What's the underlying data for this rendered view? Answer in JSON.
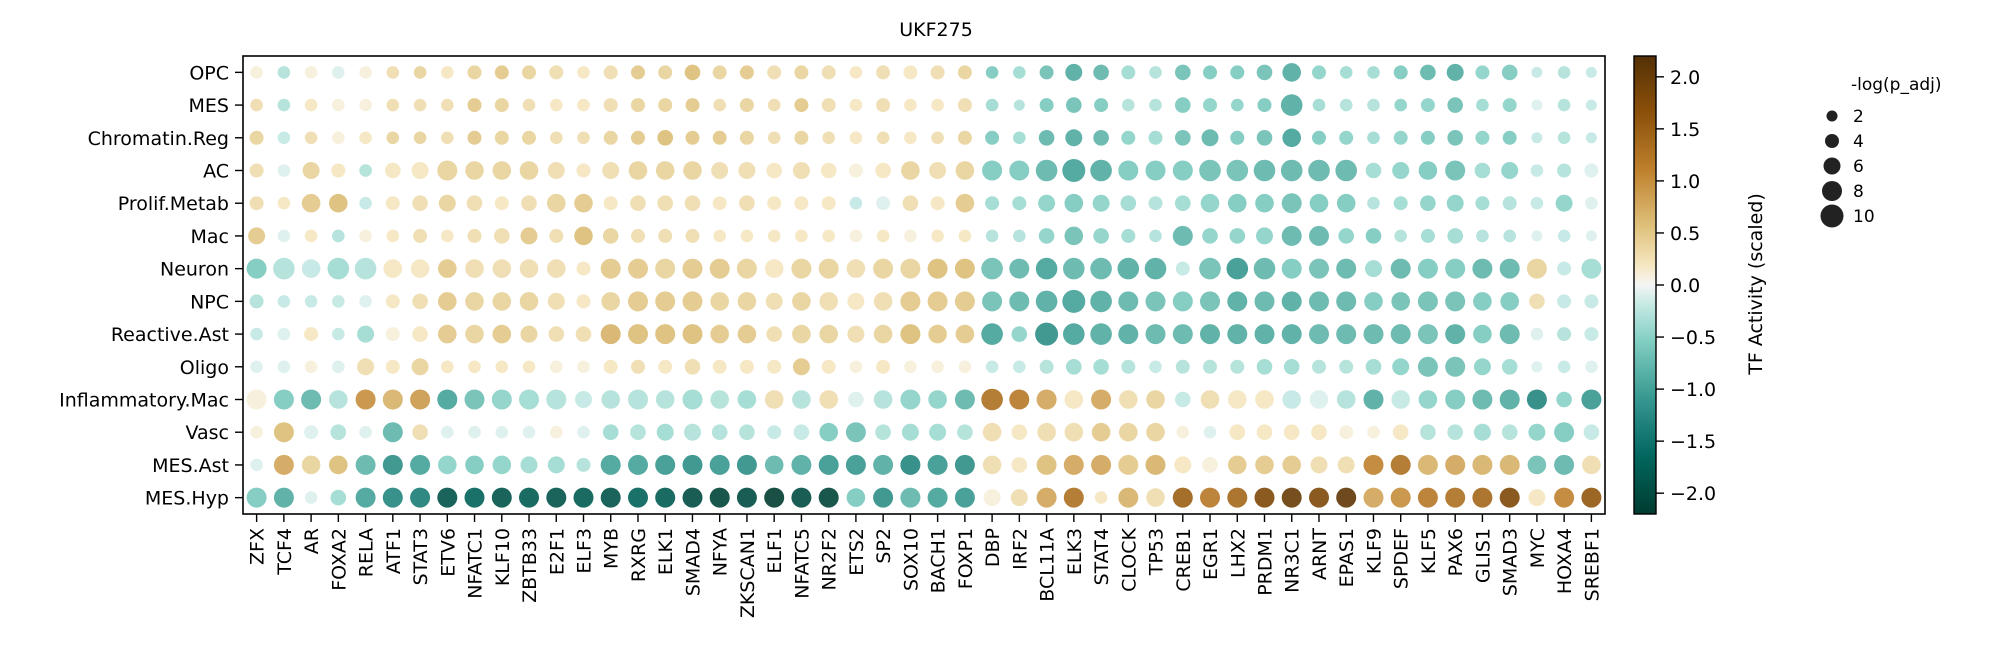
{
  "chart_data": {
    "type": "dotplot",
    "title": "UKF275",
    "rows": [
      "OPC",
      "MES",
      "Chromatin.Reg",
      "AC",
      "Prolif.Metab",
      "Mac",
      "Neuron",
      "NPC",
      "Reactive.Ast",
      "Oligo",
      "Inflammatory.Mac",
      "Vasc",
      "MES.Ast",
      "MES.Hyp"
    ],
    "columns": [
      "ZFX",
      "TCF4",
      "AR",
      "FOXA2",
      "RELA",
      "ATF1",
      "STAT3",
      "ETV6",
      "NFATC1",
      "KLF10",
      "ZBTB33",
      "E2F1",
      "ELF3",
      "MYB",
      "RXRG",
      "ELK1",
      "SMAD4",
      "NFYA",
      "ZKSCAN1",
      "ELF1",
      "NFATC5",
      "NR2F2",
      "ETS2",
      "SP2",
      "SOX10",
      "BACH1",
      "FOXP1",
      "DBP",
      "IRF2",
      "BCL11A",
      "ELK3",
      "STAT4",
      "CLOCK",
      "TP53",
      "CREB1",
      "EGR1",
      "LHX2",
      "PRDM1",
      "NR3C1",
      "ARNT",
      "EPAS1",
      "KLF9",
      "SPDEF",
      "KLF5",
      "PAX6",
      "GLIS1",
      "SMAD3",
      "MYC",
      "HOXA4",
      "SREBF1"
    ],
    "activity": [
      [
        0.1,
        -0.3,
        0.1,
        -0.1,
        0.1,
        0.3,
        0.4,
        0.2,
        0.4,
        0.5,
        0.4,
        0.3,
        0.2,
        0.3,
        0.5,
        0.4,
        0.6,
        0.4,
        0.5,
        0.3,
        0.4,
        0.3,
        0.2,
        0.3,
        0.2,
        0.3,
        0.4,
        -0.6,
        -0.4,
        -0.7,
        -0.9,
        -0.8,
        -0.4,
        -0.3,
        -0.7,
        -0.6,
        -0.6,
        -0.7,
        -0.9,
        -0.5,
        -0.4,
        -0.4,
        -0.6,
        -0.8,
        -0.9,
        -0.5,
        -0.6,
        -0.2,
        -0.3,
        -0.2
      ],
      [
        0.3,
        -0.3,
        0.2,
        0.1,
        0.1,
        0.3,
        0.3,
        0.3,
        0.5,
        0.4,
        0.3,
        0.2,
        0.2,
        0.3,
        0.4,
        0.4,
        0.5,
        0.3,
        0.4,
        0.3,
        0.5,
        0.3,
        0.2,
        0.3,
        0.2,
        0.2,
        0.3,
        -0.4,
        -0.3,
        -0.6,
        -0.7,
        -0.6,
        -0.3,
        -0.3,
        -0.6,
        -0.5,
        -0.5,
        -0.6,
        -0.9,
        -0.4,
        -0.3,
        -0.3,
        -0.5,
        -0.5,
        -0.7,
        -0.4,
        -0.5,
        -0.1,
        -0.3,
        -0.2
      ],
      [
        0.4,
        -0.2,
        0.3,
        0.1,
        0.2,
        0.4,
        0.4,
        0.3,
        0.5,
        0.4,
        0.4,
        0.3,
        0.3,
        0.4,
        0.5,
        0.6,
        0.5,
        0.5,
        0.4,
        0.3,
        0.4,
        0.3,
        0.2,
        0.3,
        0.2,
        0.3,
        0.4,
        -0.6,
        -0.4,
        -0.8,
        -0.9,
        -0.8,
        -0.5,
        -0.4,
        -0.7,
        -0.8,
        -0.6,
        -0.7,
        -1.0,
        -0.6,
        -0.5,
        -0.4,
        -0.5,
        -0.6,
        -0.7,
        -0.5,
        -0.6,
        -0.2,
        -0.3,
        -0.2
      ],
      [
        0.3,
        -0.1,
        0.4,
        0.2,
        -0.3,
        0.2,
        0.2,
        0.4,
        0.4,
        0.4,
        0.4,
        0.3,
        0.2,
        0.3,
        0.4,
        0.4,
        0.4,
        0.3,
        0.3,
        0.2,
        0.3,
        0.2,
        0.1,
        0.2,
        0.4,
        0.3,
        0.4,
        -0.6,
        -0.6,
        -0.8,
        -1.0,
        -0.9,
        -0.6,
        -0.6,
        -0.6,
        -0.7,
        -0.7,
        -0.8,
        -0.8,
        -0.8,
        -0.8,
        -0.4,
        -0.5,
        -0.6,
        -0.7,
        -0.4,
        -0.5,
        -0.2,
        -0.3,
        -0.1
      ],
      [
        0.3,
        0.2,
        0.5,
        0.6,
        -0.2,
        0.2,
        0.3,
        0.4,
        0.3,
        0.2,
        0.3,
        0.4,
        0.5,
        0.2,
        0.3,
        0.3,
        0.3,
        0.2,
        0.3,
        0.2,
        0.2,
        0.2,
        -0.2,
        -0.1,
        0.3,
        0.2,
        0.5,
        -0.4,
        -0.4,
        -0.5,
        -0.6,
        -0.5,
        -0.4,
        -0.3,
        -0.4,
        -0.5,
        -0.6,
        -0.6,
        -0.7,
        -0.6,
        -0.6,
        -0.3,
        -0.4,
        -0.5,
        -0.5,
        -0.4,
        -0.3,
        -0.2,
        -0.5,
        -0.1
      ],
      [
        0.5,
        -0.1,
        0.2,
        -0.3,
        0.1,
        0.2,
        0.3,
        0.2,
        0.3,
        0.3,
        0.5,
        0.3,
        0.6,
        0.4,
        0.3,
        0.3,
        0.3,
        0.2,
        0.2,
        0.2,
        0.2,
        0.2,
        0.1,
        0.2,
        0.1,
        0.2,
        0.2,
        -0.3,
        -0.3,
        -0.5,
        -0.7,
        -0.5,
        -0.4,
        -0.3,
        -0.8,
        -0.5,
        -0.5,
        -0.5,
        -0.8,
        -0.8,
        -0.5,
        -0.6,
        -0.3,
        -0.4,
        -0.4,
        -0.3,
        -0.3,
        -0.1,
        -0.2,
        -0.1
      ],
      [
        -0.6,
        -0.3,
        -0.2,
        -0.4,
        -0.3,
        0.2,
        0.2,
        0.5,
        0.3,
        0.3,
        0.3,
        0.3,
        0.2,
        0.5,
        0.5,
        0.4,
        0.5,
        0.5,
        0.4,
        0.2,
        0.4,
        0.4,
        0.3,
        0.4,
        0.4,
        0.6,
        0.6,
        -0.7,
        -0.8,
        -1.0,
        -0.8,
        -0.8,
        -0.9,
        -0.9,
        -0.2,
        -0.7,
        -1.1,
        -0.8,
        -0.6,
        -0.7,
        -0.8,
        -0.4,
        -0.8,
        -0.6,
        -0.6,
        -0.8,
        -0.8,
        0.4,
        -0.2,
        -0.4
      ],
      [
        -0.3,
        -0.2,
        -0.2,
        -0.2,
        -0.1,
        0.2,
        0.3,
        0.5,
        0.4,
        0.4,
        0.4,
        0.3,
        0.2,
        0.4,
        0.5,
        0.5,
        0.5,
        0.4,
        0.4,
        0.3,
        0.4,
        0.3,
        0.2,
        0.3,
        0.5,
        0.5,
        0.5,
        -0.7,
        -0.8,
        -0.9,
        -1.0,
        -0.9,
        -0.8,
        -0.7,
        -0.6,
        -0.7,
        -0.9,
        -0.8,
        -0.9,
        -0.8,
        -0.8,
        -0.6,
        -0.7,
        -0.7,
        -0.7,
        -0.6,
        -0.6,
        0.3,
        -0.2,
        -0.2
      ],
      [
        -0.2,
        -0.1,
        0.2,
        -0.2,
        -0.4,
        0.1,
        0.2,
        0.5,
        0.4,
        0.5,
        0.4,
        0.3,
        0.3,
        0.7,
        0.6,
        0.6,
        0.6,
        0.5,
        0.5,
        0.3,
        0.4,
        0.4,
        0.3,
        0.4,
        0.6,
        0.5,
        0.5,
        -1.0,
        -0.5,
        -1.2,
        -1.0,
        -0.9,
        -0.9,
        -0.8,
        -0.8,
        -0.9,
        -0.9,
        -0.9,
        -0.9,
        -0.8,
        -0.8,
        -0.8,
        -0.8,
        -0.7,
        -0.9,
        -0.6,
        -0.8,
        -0.1,
        -0.3,
        -0.2
      ],
      [
        -0.1,
        -0.1,
        0.1,
        -0.1,
        0.3,
        0.2,
        0.4,
        0.2,
        0.2,
        0.2,
        0.2,
        0.1,
        0.1,
        0.2,
        0.3,
        0.2,
        0.3,
        0.2,
        0.2,
        0.2,
        0.5,
        0.2,
        0.1,
        0.2,
        0.1,
        0.1,
        0.1,
        -0.2,
        -0.2,
        -0.3,
        -0.4,
        -0.4,
        -0.3,
        -0.2,
        -0.3,
        -0.3,
        -0.3,
        -0.4,
        -0.4,
        -0.3,
        -0.3,
        -0.4,
        -0.5,
        -0.7,
        -0.7,
        -0.5,
        -0.4,
        -0.1,
        -0.2,
        -0.1
      ],
      [
        0.1,
        -0.6,
        -0.8,
        -0.3,
        1.0,
        0.7,
        0.9,
        -1.0,
        -0.7,
        -0.5,
        -0.4,
        -0.3,
        -0.2,
        -0.3,
        -0.3,
        -0.3,
        -0.4,
        -0.3,
        -0.4,
        0.3,
        -0.3,
        0.3,
        -0.1,
        -0.3,
        -0.5,
        -0.5,
        -0.8,
        1.3,
        1.2,
        0.8,
        0.2,
        0.8,
        0.3,
        0.4,
        -0.2,
        0.3,
        0.2,
        0.2,
        -0.2,
        -0.1,
        -0.3,
        -0.9,
        -0.2,
        -0.5,
        -0.6,
        -0.8,
        -0.9,
        -1.3,
        -0.5,
        -1.1
      ],
      [
        0.1,
        0.6,
        -0.1,
        -0.3,
        -0.1,
        -0.8,
        0.3,
        -0.1,
        -0.1,
        -0.1,
        -0.1,
        0.1,
        -0.1,
        -0.4,
        -0.3,
        -0.4,
        -0.3,
        -0.3,
        -0.3,
        -0.2,
        -0.2,
        -0.6,
        -0.7,
        -0.3,
        -0.4,
        -0.4,
        -0.3,
        0.3,
        0.2,
        0.3,
        0.3,
        0.5,
        0.4,
        0.4,
        0.1,
        -0.1,
        0.2,
        0.2,
        0.2,
        0.2,
        0.1,
        0.1,
        0.2,
        -0.3,
        -0.3,
        -0.4,
        -0.3,
        -0.5,
        -0.6,
        -0.2
      ],
      [
        -0.1,
        0.8,
        0.4,
        0.6,
        -0.8,
        -1.2,
        -1.0,
        -0.5,
        -0.6,
        -0.5,
        -0.4,
        -0.4,
        -0.3,
        -1.0,
        -1.0,
        -1.1,
        -1.2,
        -1.1,
        -1.2,
        -0.8,
        -0.9,
        -1.1,
        -1.1,
        -0.9,
        -1.3,
        -1.1,
        -1.2,
        0.3,
        0.2,
        0.6,
        0.8,
        0.8,
        0.5,
        0.7,
        0.2,
        0.1,
        0.5,
        0.5,
        0.5,
        0.3,
        0.3,
        1.1,
        1.3,
        0.7,
        0.8,
        0.7,
        0.7,
        -0.7,
        -0.8,
        0.3
      ],
      [
        -0.6,
        -0.9,
        -0.1,
        -0.4,
        -1.0,
        -1.3,
        -1.4,
        -1.9,
        -1.7,
        -1.9,
        -1.8,
        -1.9,
        -1.8,
        -1.9,
        -1.7,
        -1.8,
        -2.0,
        -2.1,
        -2.0,
        -2.2,
        -2.0,
        -2.1,
        -0.6,
        -1.2,
        -0.8,
        -1.0,
        -1.1,
        0.1,
        0.3,
        0.8,
        1.3,
        0.2,
        0.7,
        0.3,
        1.5,
        1.2,
        1.4,
        1.8,
        2.0,
        1.8,
        2.1,
        0.8,
        1.0,
        1.2,
        1.3,
        1.4,
        1.8,
        0.2,
        1.1,
        1.6
      ]
    ],
    "neglog_padj": [
      [
        3,
        3,
        3,
        3,
        3,
        3,
        3,
        3,
        4,
        4,
        4,
        4,
        3,
        4,
        4,
        4,
        5,
        4,
        4,
        4,
        4,
        4,
        3,
        4,
        4,
        4,
        4,
        3,
        3,
        4,
        6,
        5,
        4,
        3,
        5,
        4,
        4,
        5,
        7,
        4,
        3,
        3,
        4,
        5,
        6,
        4,
        5,
        2,
        3,
        2
      ],
      [
        3,
        3,
        3,
        3,
        3,
        3,
        3,
        3,
        4,
        4,
        3,
        3,
        3,
        4,
        4,
        4,
        4,
        3,
        4,
        3,
        4,
        4,
        3,
        4,
        3,
        3,
        4,
        3,
        2,
        4,
        5,
        4,
        3,
        3,
        5,
        4,
        3,
        4,
        9,
        3,
        3,
        3,
        3,
        4,
        5,
        3,
        4,
        2,
        3,
        2
      ],
      [
        4,
        3,
        3,
        3,
        3,
        3,
        3,
        3,
        4,
        4,
        4,
        3,
        3,
        4,
        4,
        5,
        4,
        4,
        4,
        3,
        4,
        3,
        3,
        3,
        3,
        3,
        4,
        4,
        3,
        5,
        6,
        5,
        4,
        4,
        5,
        6,
        4,
        5,
        7,
        4,
        4,
        3,
        4,
        4,
        5,
        4,
        4,
        2,
        3,
        2
      ],
      [
        4,
        3,
        6,
        4,
        3,
        5,
        6,
        8,
        7,
        7,
        7,
        6,
        4,
        6,
        7,
        7,
        7,
        6,
        6,
        5,
        6,
        5,
        4,
        5,
        7,
        6,
        7,
        8,
        8,
        9,
        10,
        9,
        8,
        8,
        8,
        9,
        9,
        9,
        9,
        9,
        9,
        5,
        6,
        7,
        8,
        5,
        6,
        3,
        4,
        4
      ],
      [
        4,
        3,
        7,
        7,
        3,
        4,
        5,
        6,
        5,
        4,
        5,
        7,
        7,
        4,
        5,
        5,
        5,
        4,
        5,
        4,
        4,
        4,
        3,
        4,
        5,
        4,
        7,
        4,
        4,
        6,
        7,
        6,
        5,
        4,
        5,
        7,
        7,
        7,
        8,
        7,
        7,
        3,
        4,
        5,
        6,
        4,
        4,
        3,
        6,
        3
      ],
      [
        6,
        3,
        3,
        3,
        3,
        3,
        4,
        3,
        4,
        5,
        6,
        4,
        7,
        5,
        4,
        4,
        4,
        3,
        3,
        3,
        3,
        3,
        3,
        3,
        3,
        3,
        3,
        3,
        3,
        5,
        7,
        5,
        4,
        3,
        8,
        5,
        5,
        6,
        8,
        8,
        5,
        5,
        3,
        4,
        5,
        3,
        3,
        2,
        3,
        2
      ],
      [
        8,
        9,
        7,
        9,
        9,
        7,
        7,
        7,
        7,
        7,
        7,
        7,
        4,
        8,
        8,
        8,
        8,
        8,
        8,
        7,
        8,
        8,
        7,
        8,
        8,
        8,
        8,
        9,
        8,
        9,
        9,
        9,
        9,
        9,
        4,
        9,
        9,
        9,
        8,
        8,
        8,
        6,
        8,
        8,
        8,
        8,
        8,
        8,
        4,
        8
      ],
      [
        4,
        3,
        3,
        3,
        3,
        4,
        5,
        7,
        7,
        7,
        7,
        6,
        4,
        7,
        8,
        8,
        8,
        7,
        7,
        6,
        7,
        7,
        6,
        7,
        8,
        8,
        8,
        8,
        8,
        9,
        10,
        9,
        8,
        8,
        8,
        8,
        8,
        8,
        8,
        8,
        8,
        7,
        7,
        8,
        8,
        7,
        7,
        5,
        4,
        4
      ],
      [
        3,
        3,
        4,
        3,
        6,
        4,
        5,
        7,
        7,
        7,
        6,
        5,
        5,
        8,
        8,
        8,
        8,
        7,
        7,
        5,
        7,
        7,
        6,
        7,
        8,
        7,
        7,
        9,
        5,
        10,
        9,
        9,
        8,
        8,
        8,
        8,
        8,
        8,
        8,
        8,
        8,
        8,
        8,
        8,
        8,
        7,
        8,
        3,
        4,
        4
      ],
      [
        3,
        3,
        3,
        3,
        6,
        4,
        6,
        3,
        3,
        3,
        3,
        3,
        3,
        4,
        4,
        4,
        5,
        4,
        4,
        4,
        6,
        4,
        3,
        4,
        3,
        3,
        3,
        3,
        3,
        4,
        5,
        5,
        4,
        3,
        4,
        4,
        4,
        5,
        5,
        4,
        4,
        5,
        6,
        8,
        8,
        6,
        5,
        2,
        3,
        3
      ],
      [
        8,
        8,
        8,
        7,
        8,
        8,
        8,
        8,
        8,
        8,
        8,
        8,
        6,
        7,
        8,
        7,
        8,
        7,
        7,
        7,
        7,
        7,
        5,
        7,
        8,
        7,
        8,
        9,
        8,
        8,
        7,
        8,
        7,
        7,
        5,
        7,
        7,
        7,
        7,
        7,
        7,
        8,
        7,
        7,
        8,
        8,
        8,
        8,
        5,
        8
      ],
      [
        3,
        8,
        4,
        5,
        3,
        8,
        5,
        3,
        3,
        3,
        3,
        3,
        3,
        5,
        5,
        6,
        6,
        5,
        5,
        4,
        5,
        7,
        8,
        5,
        6,
        6,
        5,
        7,
        5,
        7,
        7,
        7,
        7,
        7,
        3,
        3,
        5,
        5,
        5,
        5,
        4,
        3,
        5,
        5,
        5,
        6,
        5,
        6,
        8,
        5
      ],
      [
        3,
        8,
        7,
        7,
        8,
        8,
        8,
        7,
        7,
        7,
        6,
        6,
        4,
        8,
        8,
        8,
        8,
        8,
        8,
        7,
        8,
        8,
        8,
        8,
        8,
        8,
        8,
        7,
        5,
        8,
        8,
        8,
        8,
        8,
        6,
        5,
        7,
        7,
        7,
        6,
        6,
        8,
        8,
        8,
        8,
        8,
        8,
        7,
        8,
        7
      ],
      [
        8,
        8,
        3,
        5,
        8,
        8,
        8,
        8,
        8,
        8,
        8,
        8,
        8,
        8,
        8,
        8,
        8,
        8,
        8,
        8,
        8,
        8,
        7,
        8,
        8,
        8,
        8,
        6,
        6,
        8,
        8,
        3,
        8,
        7,
        8,
        8,
        8,
        8,
        8,
        8,
        8,
        8,
        8,
        8,
        8,
        8,
        8,
        6,
        8,
        8
      ]
    ],
    "colorbar": {
      "label": "TF Activity (scaled)",
      "range": [
        -2.2,
        2.2
      ],
      "ticks": [
        "2.0",
        "1.5",
        "1.0",
        "0.5",
        "0.0",
        "−0.5",
        "−1.0",
        "−1.5",
        "−2.0"
      ],
      "tick_values": [
        2.0,
        1.5,
        1.0,
        0.5,
        0.0,
        -0.5,
        -1.0,
        -1.5,
        -2.0
      ],
      "colormap": "BrBG_r"
    },
    "size_legend": {
      "title": "-log(p_adj)",
      "labels": [
        "2",
        "4",
        "6",
        "8",
        "10"
      ],
      "values": [
        2,
        4,
        6,
        8,
        10
      ],
      "placement": "right"
    }
  }
}
